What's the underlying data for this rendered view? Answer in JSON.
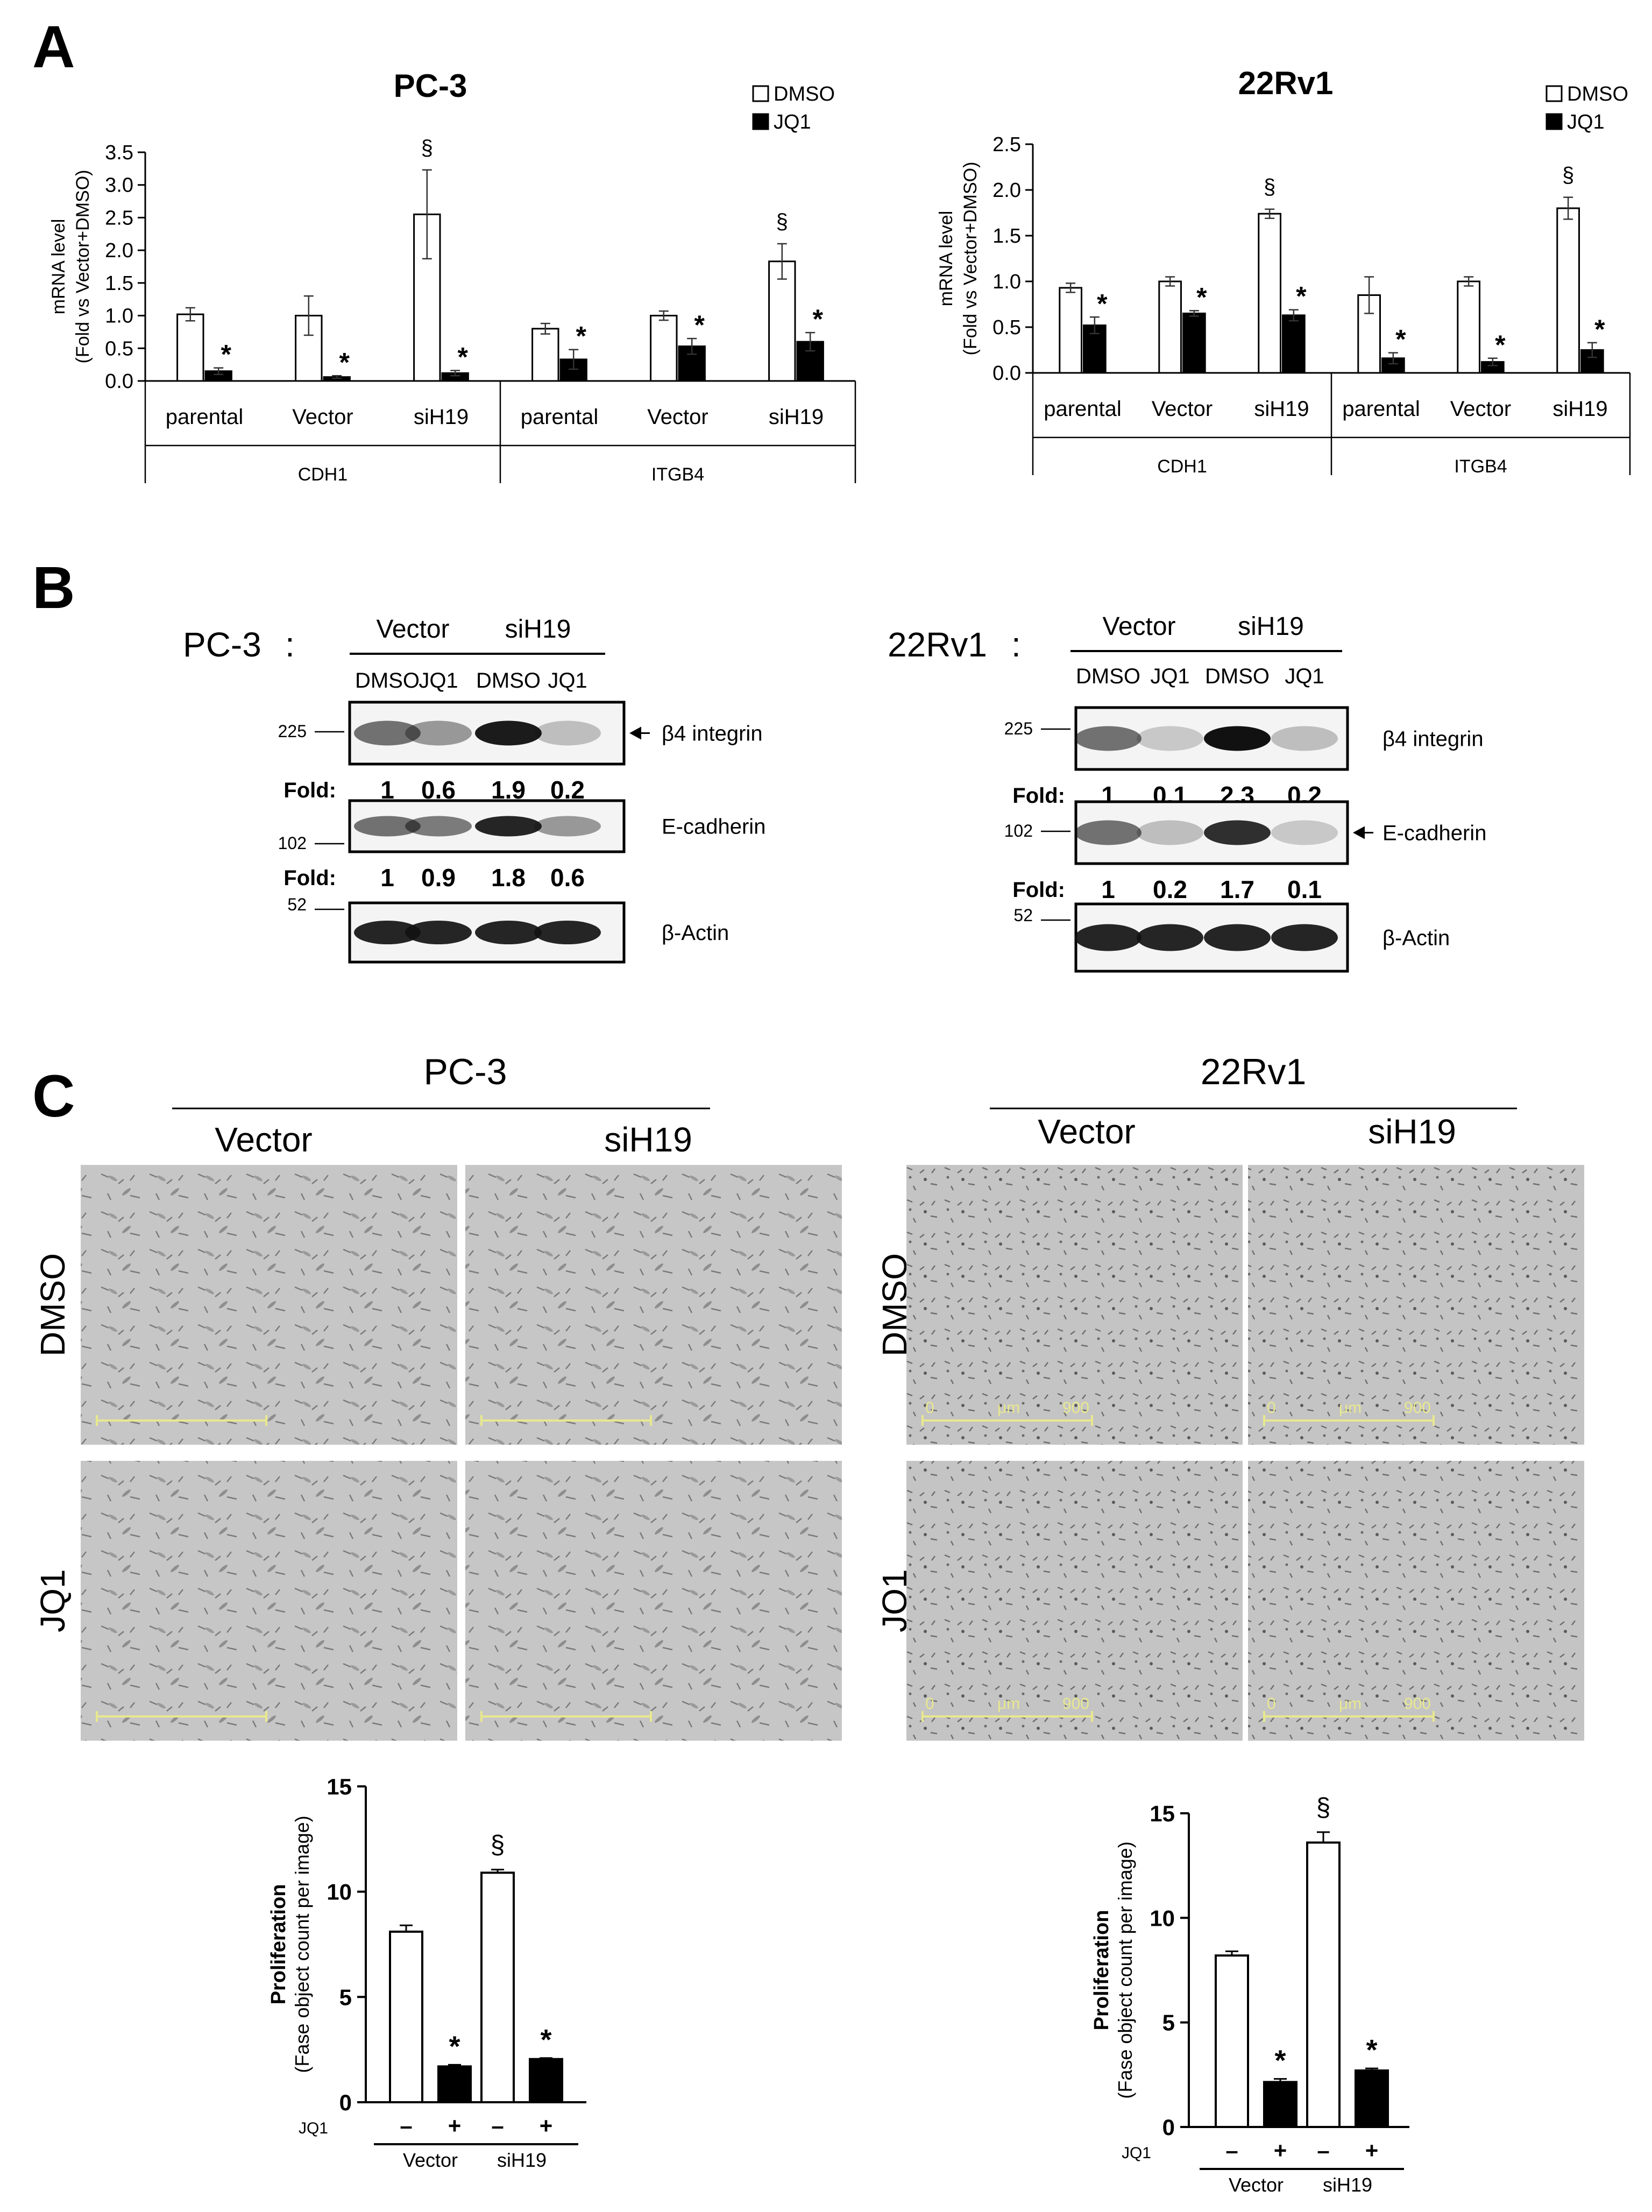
{
  "panels": {
    "a": "A",
    "b": "B",
    "c": "C"
  },
  "colors": {
    "dmso": "#ffffff",
    "jq1": "#000000",
    "photo_bg": "#c4c4c4",
    "scale": "#e8e890"
  },
  "chart_data": [
    {
      "id": "pc3_mrna",
      "type": "bar",
      "title": "PC-3",
      "ylabel_line1": "mRNA level",
      "ylabel_line2": "(Fold vs Vector+DMSO)",
      "ylim": [
        0,
        3.5
      ],
      "yticks": [
        "0.0",
        "0.5",
        "1.0",
        "1.5",
        "2.0",
        "2.5",
        "3.0",
        "3.5"
      ],
      "categories": [
        "parental",
        "Vector",
        "siH19",
        "parental",
        "Vector",
        "siH19"
      ],
      "groups": [
        "CDH1",
        "ITGB4"
      ],
      "legend": [
        "DMSO",
        "JQ1"
      ],
      "series": [
        {
          "name": "DMSO",
          "values": [
            1.02,
            1.0,
            2.55,
            0.8,
            1.0,
            1.83
          ],
          "errors": [
            0.1,
            0.3,
            0.68,
            0.08,
            0.07,
            0.27
          ]
        },
        {
          "name": "JQ1",
          "values": [
            0.15,
            0.06,
            0.12,
            0.33,
            0.53,
            0.6
          ],
          "errors": [
            0.05,
            0.02,
            0.04,
            0.15,
            0.12,
            0.14
          ]
        }
      ],
      "marks_dmso": [
        "",
        "",
        "§",
        "",
        "",
        "§"
      ],
      "marks_jq1": [
        "*",
        "*",
        "*",
        "*",
        "*",
        "*"
      ]
    },
    {
      "id": "rv1_mrna",
      "type": "bar",
      "title": "22Rv1",
      "ylabel_line1": "mRNA level",
      "ylabel_line2": "(Fold vs Vector+DMSO)",
      "ylim": [
        0,
        2.5
      ],
      "yticks": [
        "0.0",
        "0.5",
        "1.0",
        "1.5",
        "2.0",
        "2.5"
      ],
      "categories": [
        "parental",
        "Vector",
        "siH19",
        "parental",
        "Vector",
        "siH19"
      ],
      "groups": [
        "CDH1",
        "ITGB4"
      ],
      "legend": [
        "DMSO",
        "JQ1"
      ],
      "series": [
        {
          "name": "DMSO",
          "values": [
            0.93,
            1.0,
            1.74,
            0.85,
            1.0,
            1.8
          ],
          "errors": [
            0.05,
            0.05,
            0.05,
            0.2,
            0.05,
            0.12
          ]
        },
        {
          "name": "JQ1",
          "values": [
            0.52,
            0.65,
            0.63,
            0.16,
            0.12,
            0.25
          ],
          "errors": [
            0.09,
            0.03,
            0.06,
            0.06,
            0.04,
            0.08
          ]
        }
      ],
      "marks_dmso": [
        "",
        "",
        "§",
        "",
        "",
        "§"
      ],
      "marks_jq1": [
        "*",
        "*",
        "*",
        "*",
        "*",
        "*"
      ]
    },
    {
      "id": "pc3_prolif",
      "type": "bar",
      "ylabel_line1": "Proliferation",
      "ylabel_line2": "(Fase object count per image)",
      "ylim": [
        0,
        15
      ],
      "yticks": [
        "0",
        "5",
        "10",
        "15"
      ],
      "row_label": "JQ1",
      "treat": [
        "–",
        "+",
        "–",
        "+"
      ],
      "groups": [
        "Vector",
        "siH19"
      ],
      "values": [
        8.1,
        1.7,
        10.9,
        2.05
      ],
      "errors": [
        0.3,
        0.08,
        0.15,
        0.05
      ],
      "fills": [
        "dmso",
        "jq1",
        "dmso",
        "jq1"
      ],
      "marks": [
        "",
        "*",
        "§",
        "*"
      ]
    },
    {
      "id": "rv1_prolif",
      "type": "bar",
      "ylabel_line1": "Proliferation",
      "ylabel_line2": "(Fase object count per image)",
      "ylim": [
        0,
        15
      ],
      "yticks": [
        "0",
        "5",
        "10",
        "15"
      ],
      "row_label": "JQ1",
      "treat": [
        "–",
        "+",
        "–",
        "+"
      ],
      "groups": [
        "Vector",
        "siH19"
      ],
      "values": [
        8.2,
        2.15,
        13.6,
        2.7
      ],
      "errors": [
        0.2,
        0.15,
        0.5,
        0.1
      ],
      "fills": [
        "dmso",
        "jq1",
        "dmso",
        "jq1"
      ],
      "marks": [
        "",
        "*",
        "§",
        "*"
      ]
    }
  ],
  "blots": [
    {
      "id": "pc3_blot",
      "cell": "PC-3",
      "colon": ":",
      "groups": [
        "Vector",
        "siH19"
      ],
      "lanes": [
        "DMSO",
        "JQ1",
        "DMSO",
        "JQ1"
      ],
      "fold_label": "Fold:",
      "markers": {
        "m225": "225",
        "m102": "102",
        "m52": "52"
      },
      "rows": [
        {
          "name": "β4 integrin",
          "fold": [
            "1",
            "0.6",
            "1.9",
            "0.2"
          ],
          "arrow": true
        },
        {
          "name": "E-cadherin",
          "fold": [
            "1",
            "0.9",
            "1.8",
            "0.6"
          ],
          "arrow": false
        },
        {
          "name": "β-Actin",
          "fold": [],
          "arrow": false
        }
      ]
    },
    {
      "id": "rv1_blot",
      "cell": "22Rv1",
      "colon": ":",
      "groups": [
        "Vector",
        "siH19"
      ],
      "lanes": [
        "DMSO",
        "JQ1",
        "DMSO",
        "JQ1"
      ],
      "fold_label": "Fold:",
      "markers": {
        "m225": "225",
        "m102": "102",
        "m52": "52"
      },
      "rows": [
        {
          "name": "β4 integrin",
          "fold": [
            "1",
            "0.1",
            "2.3",
            "0.2"
          ],
          "arrow": false
        },
        {
          "name": "E-cadherin",
          "fold": [
            "1",
            "0.2",
            "1.7",
            "0.1"
          ],
          "arrow": true
        },
        {
          "name": "β-Actin",
          "fold": [],
          "arrow": false
        }
      ]
    }
  ],
  "micrographs": [
    {
      "cell": "PC-3",
      "cols": [
        "Vector",
        "siH19"
      ],
      "rows": [
        "DMSO",
        "JQ1"
      ]
    },
    {
      "cell": "22Rv1",
      "cols": [
        "Vector",
        "siH19"
      ],
      "rows": [
        "DMSO",
        "JQ1"
      ],
      "scale": {
        "start": "0",
        "unit": "μm",
        "end": "900"
      }
    }
  ]
}
